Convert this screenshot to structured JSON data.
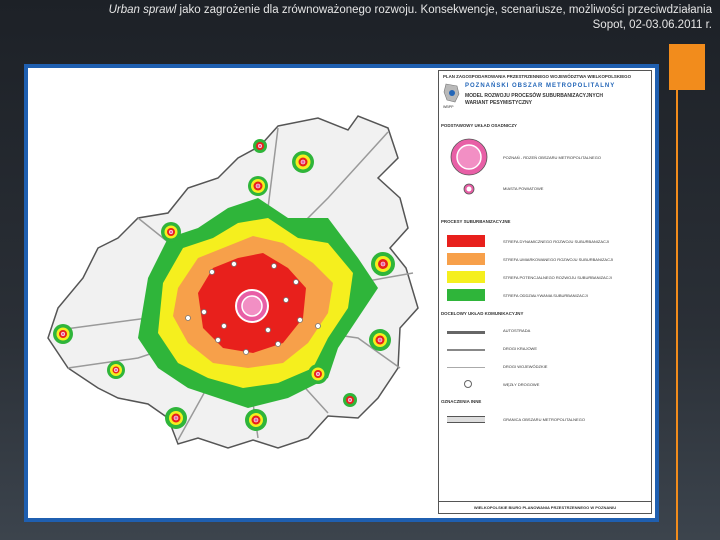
{
  "header": {
    "title_italic": "Urban sprawl",
    "title_rest": " jako zagrożenie dla zrównoważonego rozwoju. Konsekwencje, scenariusze, możliwości przeciwdziałania",
    "line2": "Sopot, 02-03.06.2011 r."
  },
  "legend": {
    "top_title": "PLAN ZAGOSPODAROWANIA PRZESTRZENNEGO WOJEWÓDZTWA WIELKOPOLSKIEGO",
    "brand": "POZNAŃSKI OBSZAR METROPOLITALNY",
    "subtitle1": "MODEL ROZWOJU PROCESÓW SUBURBANIZACYJNYCH",
    "subtitle2": "WARIANT PESYMISTYCZNY",
    "logo_text": "WBPP",
    "section1": "PODSTAWOWY UKŁAD OSADNICZY",
    "poznan_label": "POZNAŃ - RDZEŃ OBSZARU METROPOLITALNEGO",
    "cities_label": "MIASTA POWIATOWE",
    "section2": "PROCESY SUBURBANIZACYJNE",
    "zone1": "STREFA DYNAMICZNEGO ROZWOJU SUBURBANIZACJI",
    "zone2": "STREFA UMIARKOWANEGO ROZWOJU SUBURBANIZACJI",
    "zone3": "STREFA POTENCJALNEGO ROZWOJU SUBURBANIZACJI",
    "zone4": "STREFA ODDZIAŁYWANIA SUBURBANIZACJI",
    "section3": "DOCELOWY UKŁAD KOMUNIKACYJNY",
    "road1": "AUTOSTRADA",
    "road2": "DROGI KRAJOWE",
    "road3": "DROGI WOJEWÓDZKIE",
    "road4": "WĘZŁY DROGOWE",
    "section4": "OZNACZENIA INNE",
    "boundary": "GRANICA OBSZARU METROPOLITALNEGO",
    "footer": "WIELKOPOLSKIE BIURO PLANOWANIA PRZESTRZENNEGO W POZNANIU"
  },
  "colors": {
    "accent": "#f28c1c",
    "frame": "#1f5fb0",
    "zone_dynamic": "#e8201c",
    "zone_moderate": "#f7a04a",
    "zone_potential": "#f5ef1e",
    "zone_influence": "#2fb53a",
    "city_marker": "#e85fa6",
    "road": "#9a9a9a",
    "boundary_fill": "#f1f1f1"
  }
}
